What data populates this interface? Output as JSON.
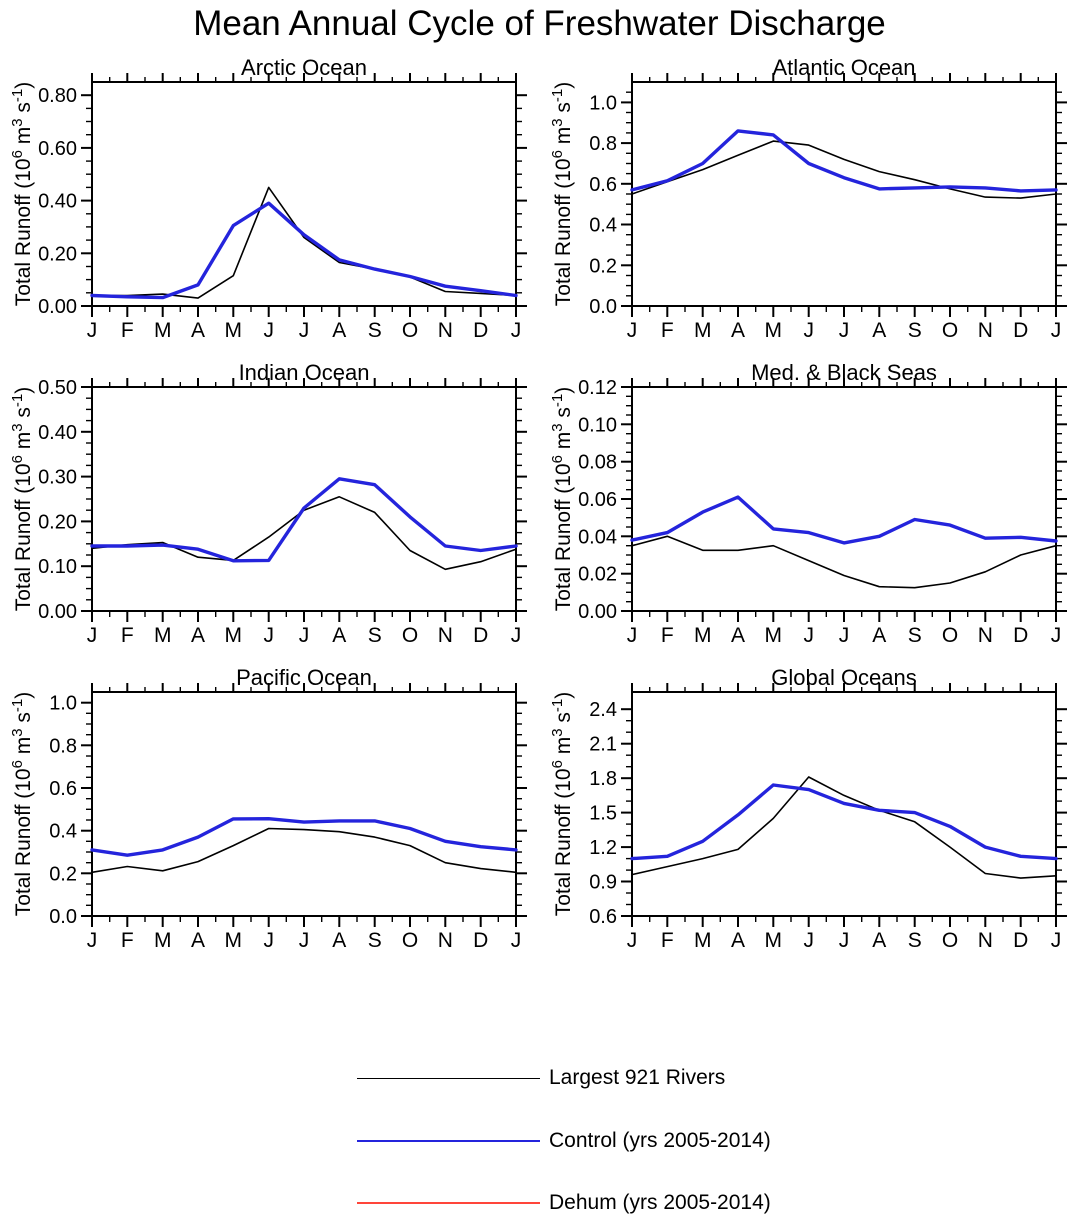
{
  "title": "Mean Annual Cycle of Freshwater Discharge",
  "layout": {
    "rows": 3,
    "cols": 2,
    "legend_position": "bottom"
  },
  "colors": {
    "rivers": "#000000",
    "control": "#2424dc",
    "dehum": "#ff453a"
  },
  "months": [
    "J",
    "F",
    "M",
    "A",
    "M",
    "J",
    "J",
    "A",
    "S",
    "O",
    "N",
    "D",
    "J"
  ],
  "legend": {
    "items": [
      {
        "label": "Largest 921 Rivers",
        "color": "#000000",
        "line_width": 1.6
      },
      {
        "label": "Control (yrs 2005-2014)",
        "color": "#2424dc",
        "line_width": 2.2
      },
      {
        "label": "Dehum (yrs 2005-2014)",
        "color": "#ff453a",
        "line_width": 2.2
      }
    ]
  },
  "chart_data": [
    {
      "type": "line",
      "title": "Arctic Ocean",
      "ylabel": "Total Runoff (10^6 m^3 s^-1)",
      "x": [
        "J",
        "F",
        "M",
        "A",
        "M",
        "J",
        "J",
        "A",
        "S",
        "O",
        "N",
        "D",
        "J"
      ],
      "ylim": [
        0,
        0.85
      ],
      "yticks": [
        0,
        0.2,
        0.4,
        0.6,
        0.8
      ],
      "ytick_labels": [
        "0.00",
        "0.20",
        "0.40",
        "0.60",
        "0.80"
      ],
      "minor_step": 0.05,
      "grid": false,
      "series": [
        {
          "name": "Largest 921 Rivers",
          "color": "#000000",
          "lw": 1.6,
          "values": [
            0.04,
            0.04,
            0.045,
            0.03,
            0.115,
            0.45,
            0.26,
            0.165,
            0.14,
            0.11,
            0.055,
            0.048,
            0.04
          ]
        },
        {
          "name": "Dehum (yrs 2005-2014)",
          "color": "#ff453a",
          "lw": 2.4,
          "values": [
            0.04,
            0.035,
            0.032,
            0.08,
            0.305,
            0.39,
            0.27,
            0.175,
            0.14,
            0.112,
            0.075,
            0.058,
            0.04
          ]
        },
        {
          "name": "Control (yrs 2005-2014)",
          "color": "#2424dc",
          "lw": 3.4,
          "values": [
            0.04,
            0.035,
            0.032,
            0.08,
            0.305,
            0.39,
            0.27,
            0.175,
            0.14,
            0.112,
            0.075,
            0.058,
            0.04
          ]
        }
      ]
    },
    {
      "type": "line",
      "title": "Atlantic Ocean",
      "ylabel": "Total Runoff (10^6 m^3 s^-1)",
      "x": [
        "J",
        "F",
        "M",
        "A",
        "M",
        "J",
        "J",
        "A",
        "S",
        "O",
        "N",
        "D",
        "J"
      ],
      "ylim": [
        0,
        1.1
      ],
      "yticks": [
        0,
        0.2,
        0.4,
        0.6,
        0.8,
        1.0
      ],
      "ytick_labels": [
        "0.0",
        "0.2",
        "0.4",
        "0.6",
        "0.8",
        "1.0"
      ],
      "minor_step": 0.05,
      "grid": false,
      "series": [
        {
          "name": "Largest 921 Rivers",
          "color": "#000000",
          "lw": 1.6,
          "values": [
            0.55,
            0.61,
            0.67,
            0.74,
            0.81,
            0.79,
            0.72,
            0.66,
            0.62,
            0.575,
            0.535,
            0.53,
            0.55
          ]
        },
        {
          "name": "Dehum (yrs 2005-2014)",
          "color": "#ff453a",
          "lw": 2.4,
          "values": [
            0.57,
            0.615,
            0.7,
            0.86,
            0.84,
            0.7,
            0.63,
            0.575,
            0.58,
            0.585,
            0.58,
            0.565,
            0.57
          ]
        },
        {
          "name": "Control (yrs 2005-2014)",
          "color": "#2424dc",
          "lw": 3.4,
          "values": [
            0.57,
            0.615,
            0.7,
            0.86,
            0.84,
            0.7,
            0.63,
            0.575,
            0.58,
            0.585,
            0.58,
            0.565,
            0.57
          ]
        }
      ]
    },
    {
      "type": "line",
      "title": "Indian Ocean",
      "ylabel": "Total Runoff (10^6 m^3 s^-1)",
      "x": [
        "J",
        "F",
        "M",
        "A",
        "M",
        "J",
        "J",
        "A",
        "S",
        "O",
        "N",
        "D",
        "J"
      ],
      "ylim": [
        0,
        0.5
      ],
      "yticks": [
        0,
        0.1,
        0.2,
        0.3,
        0.4,
        0.5
      ],
      "ytick_labels": [
        "0.00",
        "0.10",
        "0.20",
        "0.30",
        "0.40",
        "0.50"
      ],
      "minor_step": 0.025,
      "grid": false,
      "series": [
        {
          "name": "Largest 921 Rivers",
          "color": "#000000",
          "lw": 1.6,
          "values": [
            0.14,
            0.148,
            0.153,
            0.12,
            0.113,
            0.165,
            0.225,
            0.255,
            0.22,
            0.135,
            0.093,
            0.11,
            0.138
          ]
        },
        {
          "name": "Dehum (yrs 2005-2014)",
          "color": "#ff453a",
          "lw": 2.4,
          "values": [
            0.145,
            0.145,
            0.147,
            0.138,
            0.112,
            0.113,
            0.23,
            0.295,
            0.282,
            0.21,
            0.145,
            0.135,
            0.145
          ]
        },
        {
          "name": "Control (yrs 2005-2014)",
          "color": "#2424dc",
          "lw": 3.4,
          "values": [
            0.145,
            0.145,
            0.147,
            0.138,
            0.112,
            0.113,
            0.23,
            0.295,
            0.282,
            0.21,
            0.145,
            0.135,
            0.145
          ]
        }
      ]
    },
    {
      "type": "line",
      "title": "Med. & Black Seas",
      "ylabel": "Total Runoff (10^6 m^3 s^-1)",
      "x": [
        "J",
        "F",
        "M",
        "A",
        "M",
        "J",
        "J",
        "A",
        "S",
        "O",
        "N",
        "D",
        "J"
      ],
      "ylim": [
        0,
        0.12
      ],
      "yticks": [
        0,
        0.02,
        0.04,
        0.06,
        0.08,
        0.1,
        0.12
      ],
      "ytick_labels": [
        "0.00",
        "0.02",
        "0.04",
        "0.06",
        "0.08",
        "0.10",
        "0.12"
      ],
      "minor_step": 0.005,
      "grid": false,
      "series": [
        {
          "name": "Largest 921 Rivers",
          "color": "#000000",
          "lw": 1.6,
          "values": [
            0.035,
            0.04,
            0.0325,
            0.0325,
            0.035,
            0.027,
            0.019,
            0.013,
            0.0125,
            0.015,
            0.021,
            0.03,
            0.035
          ]
        },
        {
          "name": "Dehum (yrs 2005-2014)",
          "color": "#ff453a",
          "lw": 2.4,
          "values": [
            0.038,
            0.042,
            0.053,
            0.061,
            0.044,
            0.042,
            0.0365,
            0.04,
            0.049,
            0.046,
            0.039,
            0.0395,
            0.0375
          ]
        },
        {
          "name": "Control (yrs 2005-2014)",
          "color": "#2424dc",
          "lw": 3.4,
          "values": [
            0.038,
            0.042,
            0.053,
            0.061,
            0.044,
            0.042,
            0.0365,
            0.04,
            0.049,
            0.046,
            0.039,
            0.0395,
            0.0375
          ]
        }
      ]
    },
    {
      "type": "line",
      "title": "Pacific Ocean",
      "ylabel": "Total Runoff (10^6 m^3 s^-1)",
      "x": [
        "J",
        "F",
        "M",
        "A",
        "M",
        "J",
        "J",
        "A",
        "S",
        "O",
        "N",
        "D",
        "J"
      ],
      "ylim": [
        0,
        1.05
      ],
      "yticks": [
        0,
        0.2,
        0.4,
        0.6,
        0.8,
        1.0
      ],
      "ytick_labels": [
        "0.0",
        "0.2",
        "0.4",
        "0.6",
        "0.8",
        "1.0"
      ],
      "minor_step": 0.05,
      "grid": false,
      "series": [
        {
          "name": "Largest 921 Rivers",
          "color": "#000000",
          "lw": 1.6,
          "values": [
            0.205,
            0.232,
            0.212,
            0.255,
            0.33,
            0.41,
            0.405,
            0.395,
            0.37,
            0.33,
            0.25,
            0.222,
            0.205
          ]
        },
        {
          "name": "Dehum (yrs 2005-2014)",
          "color": "#ff453a",
          "lw": 2.4,
          "values": [
            0.31,
            0.285,
            0.31,
            0.37,
            0.455,
            0.456,
            0.44,
            0.446,
            0.446,
            0.41,
            0.35,
            0.325,
            0.31
          ]
        },
        {
          "name": "Control (yrs 2005-2014)",
          "color": "#2424dc",
          "lw": 3.4,
          "values": [
            0.31,
            0.285,
            0.31,
            0.37,
            0.455,
            0.456,
            0.44,
            0.446,
            0.446,
            0.41,
            0.35,
            0.325,
            0.31
          ]
        }
      ]
    },
    {
      "type": "line",
      "title": "Global Oceans",
      "ylabel": "Total Runoff (10^6 m^3 s^-1)",
      "x": [
        "J",
        "F",
        "M",
        "A",
        "M",
        "J",
        "J",
        "A",
        "S",
        "O",
        "N",
        "D",
        "J"
      ],
      "ylim": [
        0.6,
        2.55
      ],
      "yticks": [
        0.6,
        0.9,
        1.2,
        1.5,
        1.8,
        2.1,
        2.4
      ],
      "ytick_labels": [
        "0.6",
        "0.9",
        "1.2",
        "1.5",
        "1.8",
        "2.1",
        "2.4"
      ],
      "minor_step": 0.1,
      "grid": false,
      "series": [
        {
          "name": "Largest 921 Rivers",
          "color": "#000000",
          "lw": 1.6,
          "values": [
            0.96,
            1.03,
            1.1,
            1.18,
            1.45,
            1.81,
            1.65,
            1.52,
            1.42,
            1.2,
            0.97,
            0.93,
            0.95
          ]
        },
        {
          "name": "Dehum (yrs 2005-2014)",
          "color": "#ff453a",
          "lw": 2.4,
          "values": [
            1.1,
            1.12,
            1.25,
            1.48,
            1.74,
            1.7,
            1.58,
            1.52,
            1.5,
            1.38,
            1.2,
            1.12,
            1.1
          ]
        },
        {
          "name": "Control (yrs 2005-2014)",
          "color": "#2424dc",
          "lw": 3.4,
          "values": [
            1.1,
            1.12,
            1.25,
            1.48,
            1.74,
            1.7,
            1.58,
            1.52,
            1.5,
            1.38,
            1.2,
            1.12,
            1.1
          ]
        }
      ]
    }
  ]
}
